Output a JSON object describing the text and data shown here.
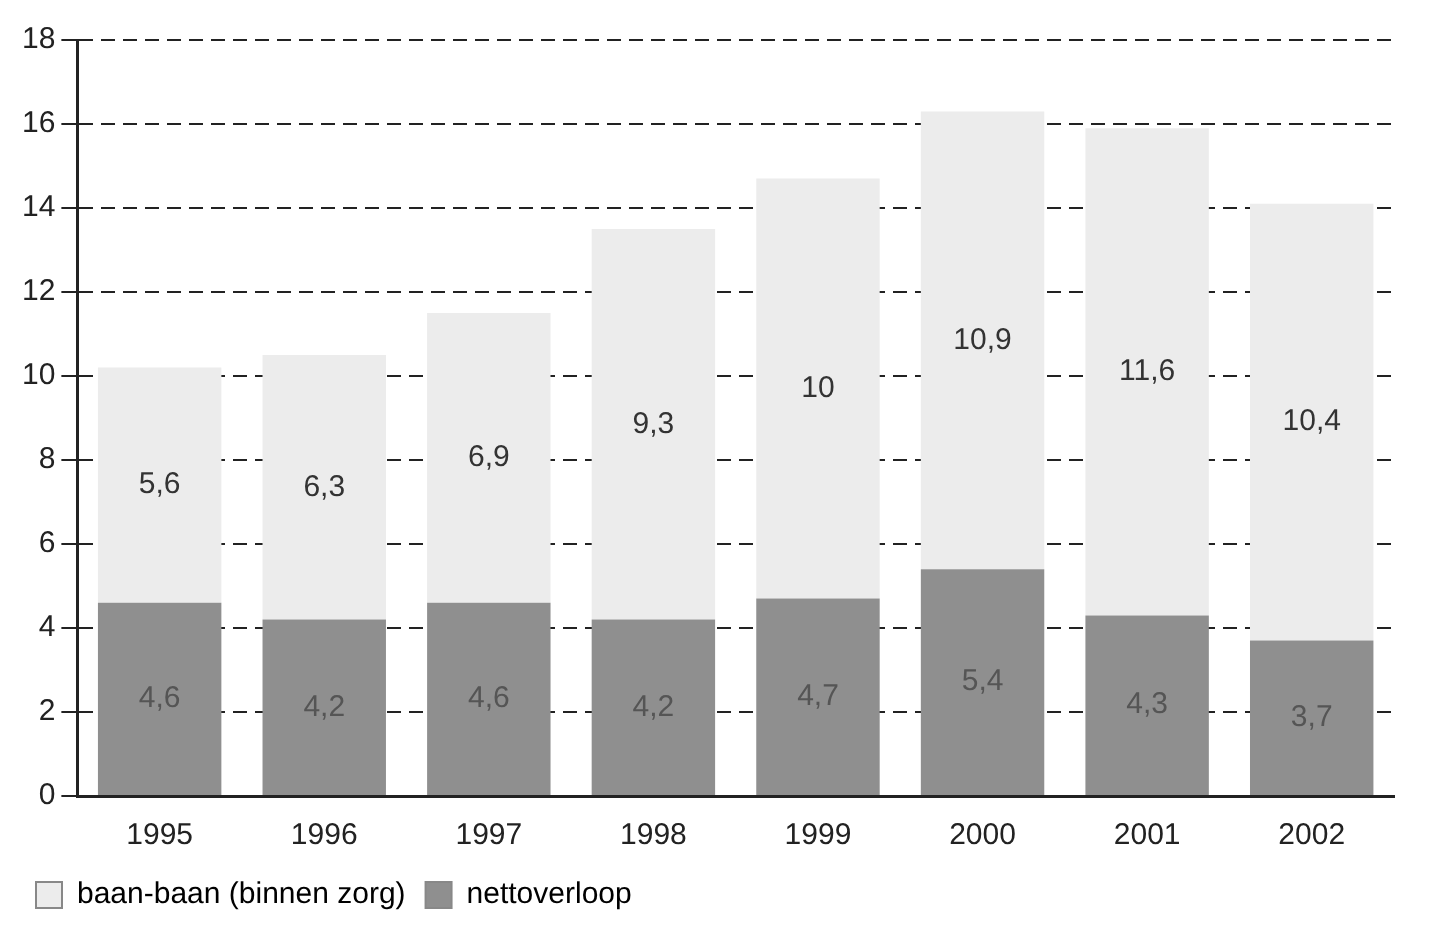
{
  "chart_data": {
    "type": "bar",
    "stacked": true,
    "categories": [
      "1995",
      "1996",
      "1997",
      "1998",
      "1999",
      "2000",
      "2001",
      "2002"
    ],
    "series": [
      {
        "name": "nettoverloop",
        "color": "#8f8f8f",
        "values": [
          4.6,
          4.2,
          4.6,
          4.2,
          4.7,
          5.4,
          4.3,
          3.7
        ],
        "value_labels": [
          "4,6",
          "4,2",
          "4,6",
          "4,2",
          "4,7",
          "5,4",
          "4,3",
          "3,7"
        ]
      },
      {
        "name": "baan-baan (binnen zorg)",
        "color": "#ececec",
        "values": [
          5.6,
          6.3,
          6.9,
          9.3,
          10,
          10.9,
          11.6,
          10.4
        ],
        "value_labels": [
          "5,6",
          "6,3",
          "6,9",
          "9,3",
          "10",
          "10,9",
          "11,6",
          "10,4"
        ]
      }
    ],
    "ylim": [
      0,
      18
    ],
    "yticks": [
      0,
      2,
      4,
      6,
      8,
      10,
      12,
      14,
      16,
      18
    ],
    "grid": "y",
    "legend": "bottom left"
  }
}
